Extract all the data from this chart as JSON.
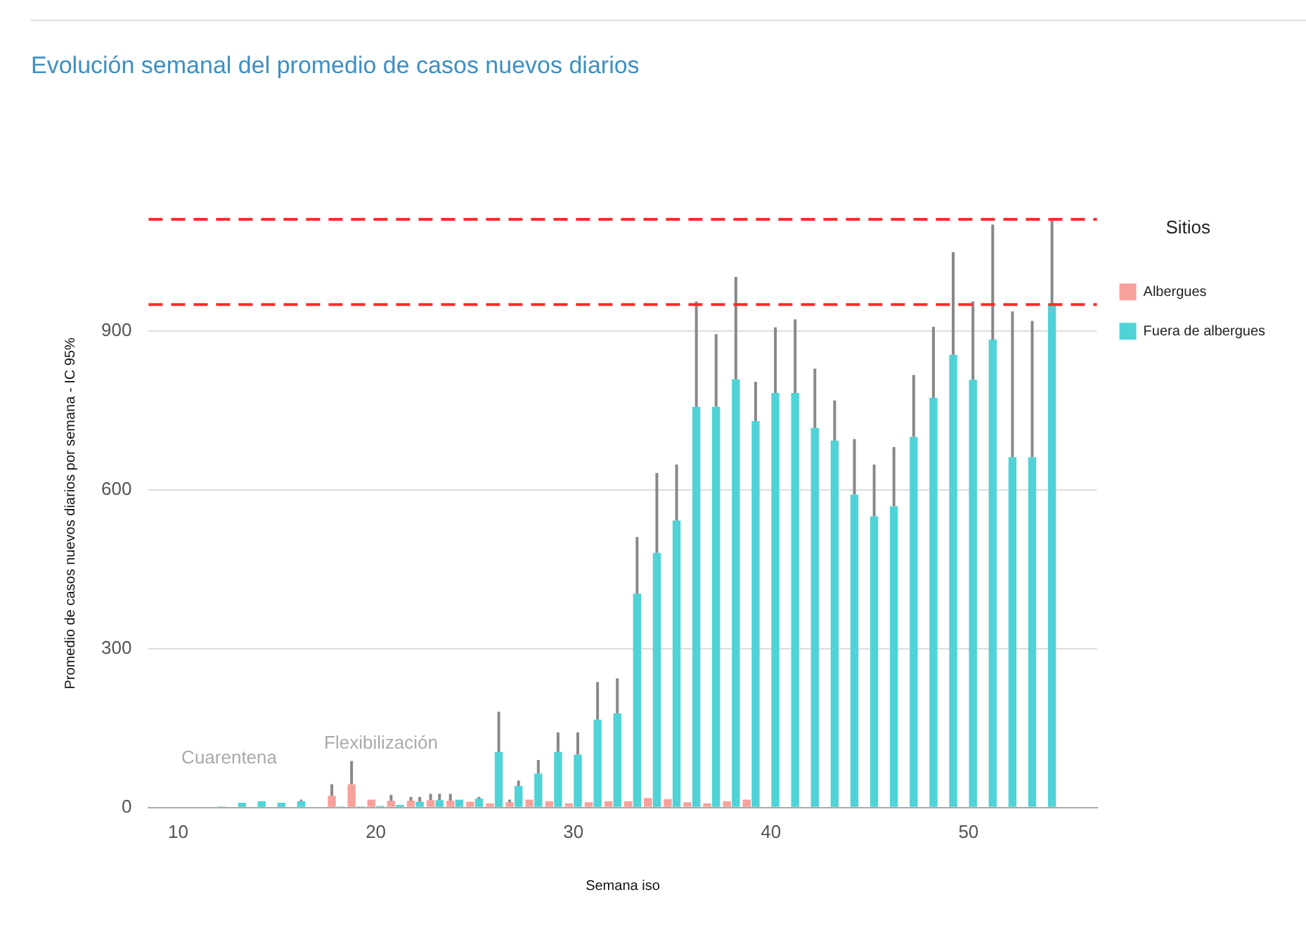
{
  "chart_data": {
    "type": "bar",
    "title": "Evolución semanal del promedio de casos nuevos diarios",
    "xlabel": "Semana iso",
    "ylabel": "Promedio de casos nuevos diarios por semana - IC 95%",
    "legend_title": "Sitios",
    "legend": "right",
    "grid": "y",
    "x": [
      12,
      13,
      14,
      15,
      16,
      17,
      18,
      19,
      20,
      21,
      22,
      23,
      24,
      25,
      26,
      27,
      28,
      29,
      30,
      31,
      32,
      33,
      34,
      35,
      36,
      37,
      38,
      39,
      40,
      41,
      42,
      43,
      44,
      45,
      46,
      47,
      48,
      49,
      50,
      51,
      52,
      53,
      54
    ],
    "xlim": [
      8.5,
      56.5
    ],
    "xticks": [
      10,
      20,
      30,
      40,
      50
    ],
    "ylim": [
      0,
      1111
    ],
    "yticks": [
      0,
      300,
      600,
      900
    ],
    "series": [
      {
        "name": "Albergues",
        "color": "#f8a19b",
        "values": [
          null,
          null,
          null,
          null,
          null,
          null,
          22,
          44,
          15,
          13,
          13,
          14,
          13,
          11,
          8,
          10,
          15,
          12,
          8,
          10,
          12,
          12,
          18,
          16,
          10,
          8,
          12,
          15,
          null,
          null,
          null,
          null,
          null,
          null,
          null,
          null,
          null,
          null,
          null,
          null,
          null,
          null,
          null
        ],
        "errors": [
          null,
          null,
          null,
          null,
          null,
          null,
          [
            22,
            44
          ],
          [
            44,
            88
          ],
          null,
          [
            13,
            24
          ],
          [
            13,
            20
          ],
          [
            14,
            26
          ],
          [
            13,
            26
          ],
          null,
          null,
          [
            10,
            15
          ],
          null,
          null,
          null,
          null,
          null,
          null,
          null,
          null,
          null,
          null,
          null,
          null,
          null,
          null,
          null,
          null,
          null,
          null,
          null,
          null,
          null,
          null,
          null,
          null,
          null,
          null,
          null
        ]
      },
      {
        "name": "Fuera de albergues",
        "color": "#4fd3d7",
        "values": [
          2,
          9,
          12,
          9,
          12,
          null,
          2,
          2,
          3,
          5,
          11,
          14,
          15,
          17,
          105,
          41,
          64,
          105,
          100,
          166,
          178,
          404,
          481,
          542,
          757,
          757,
          809,
          730,
          783,
          783,
          717,
          693,
          591,
          550,
          569,
          700,
          774,
          855,
          808,
          884,
          662,
          662,
          950
        ],
        "errors": [
          null,
          null,
          null,
          null,
          [
            12,
            15
          ],
          null,
          null,
          null,
          null,
          null,
          [
            11,
            20
          ],
          [
            14,
            26
          ],
          null,
          [
            17,
            20
          ],
          [
            105,
            181
          ],
          [
            41,
            51
          ],
          [
            64,
            90
          ],
          [
            105,
            142
          ],
          [
            100,
            142
          ],
          [
            166,
            237
          ],
          [
            178,
            244
          ],
          [
            404,
            511
          ],
          [
            481,
            632
          ],
          [
            542,
            648
          ],
          [
            757,
            956
          ],
          [
            757,
            894
          ],
          [
            809,
            1002
          ],
          [
            730,
            804
          ],
          [
            783,
            907
          ],
          [
            783,
            922
          ],
          [
            717,
            829
          ],
          [
            693,
            769
          ],
          [
            591,
            696
          ],
          [
            550,
            648
          ],
          [
            569,
            681
          ],
          [
            700,
            817
          ],
          [
            774,
            908
          ],
          [
            855,
            1049
          ],
          [
            808,
            956
          ],
          [
            884,
            1101
          ],
          [
            662,
            937
          ],
          [
            662,
            919
          ],
          [
            950,
            1111
          ]
        ]
      }
    ],
    "ref_lines": [
      {
        "axis": "y",
        "value": 950,
        "color": "#ff2a2a",
        "line_style": "dashed"
      },
      {
        "axis": "y",
        "value": 1111,
        "color": "#ff2a2a",
        "line_style": "dashed"
      }
    ],
    "annotations": [
      "Cuarentena",
      "Flexibilización"
    ]
  }
}
